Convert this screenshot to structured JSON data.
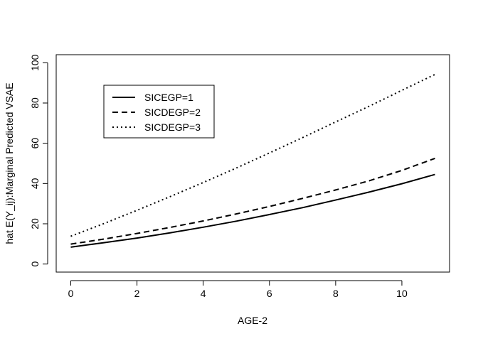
{
  "chart_data": {
    "type": "line",
    "title": "",
    "xlabel": "AGE-2",
    "ylabel": "hat E(Y_ij):Marginal Predicted VSAE",
    "xlim": [
      -0.44,
      11.44
    ],
    "ylim": [
      -4,
      104
    ],
    "x_ticks": [
      0,
      2,
      4,
      6,
      8,
      10
    ],
    "y_ticks": [
      0,
      20,
      40,
      60,
      80,
      100
    ],
    "grid": false,
    "legend_position": "top-left",
    "x": [
      0,
      1,
      2,
      3,
      4,
      5,
      6,
      7,
      8,
      9,
      10,
      11
    ],
    "series": [
      {
        "name": "SICEGP=1",
        "line_style": "solid",
        "values": [
          8.4,
          10.6,
          12.9,
          15.5,
          18.3,
          21.3,
          24.6,
          28.0,
          31.8,
          35.7,
          39.9,
          44.5
        ]
      },
      {
        "name": "SICDEGP=2",
        "line_style": "dashed",
        "values": [
          9.9,
          12.4,
          15.2,
          18.2,
          21.4,
          24.9,
          28.6,
          32.6,
          36.8,
          41.3,
          46.5,
          52.5
        ]
      },
      {
        "name": "SICDEGP=3",
        "line_style": "dotted",
        "values": [
          13.8,
          20.1,
          26.7,
          33.5,
          40.5,
          47.7,
          55.2,
          62.8,
          70.6,
          78.3,
          86.3,
          94.2
        ]
      }
    ],
    "colors": {
      "lines": "#000000",
      "axes": "#000000",
      "background": "#ffffff"
    }
  }
}
